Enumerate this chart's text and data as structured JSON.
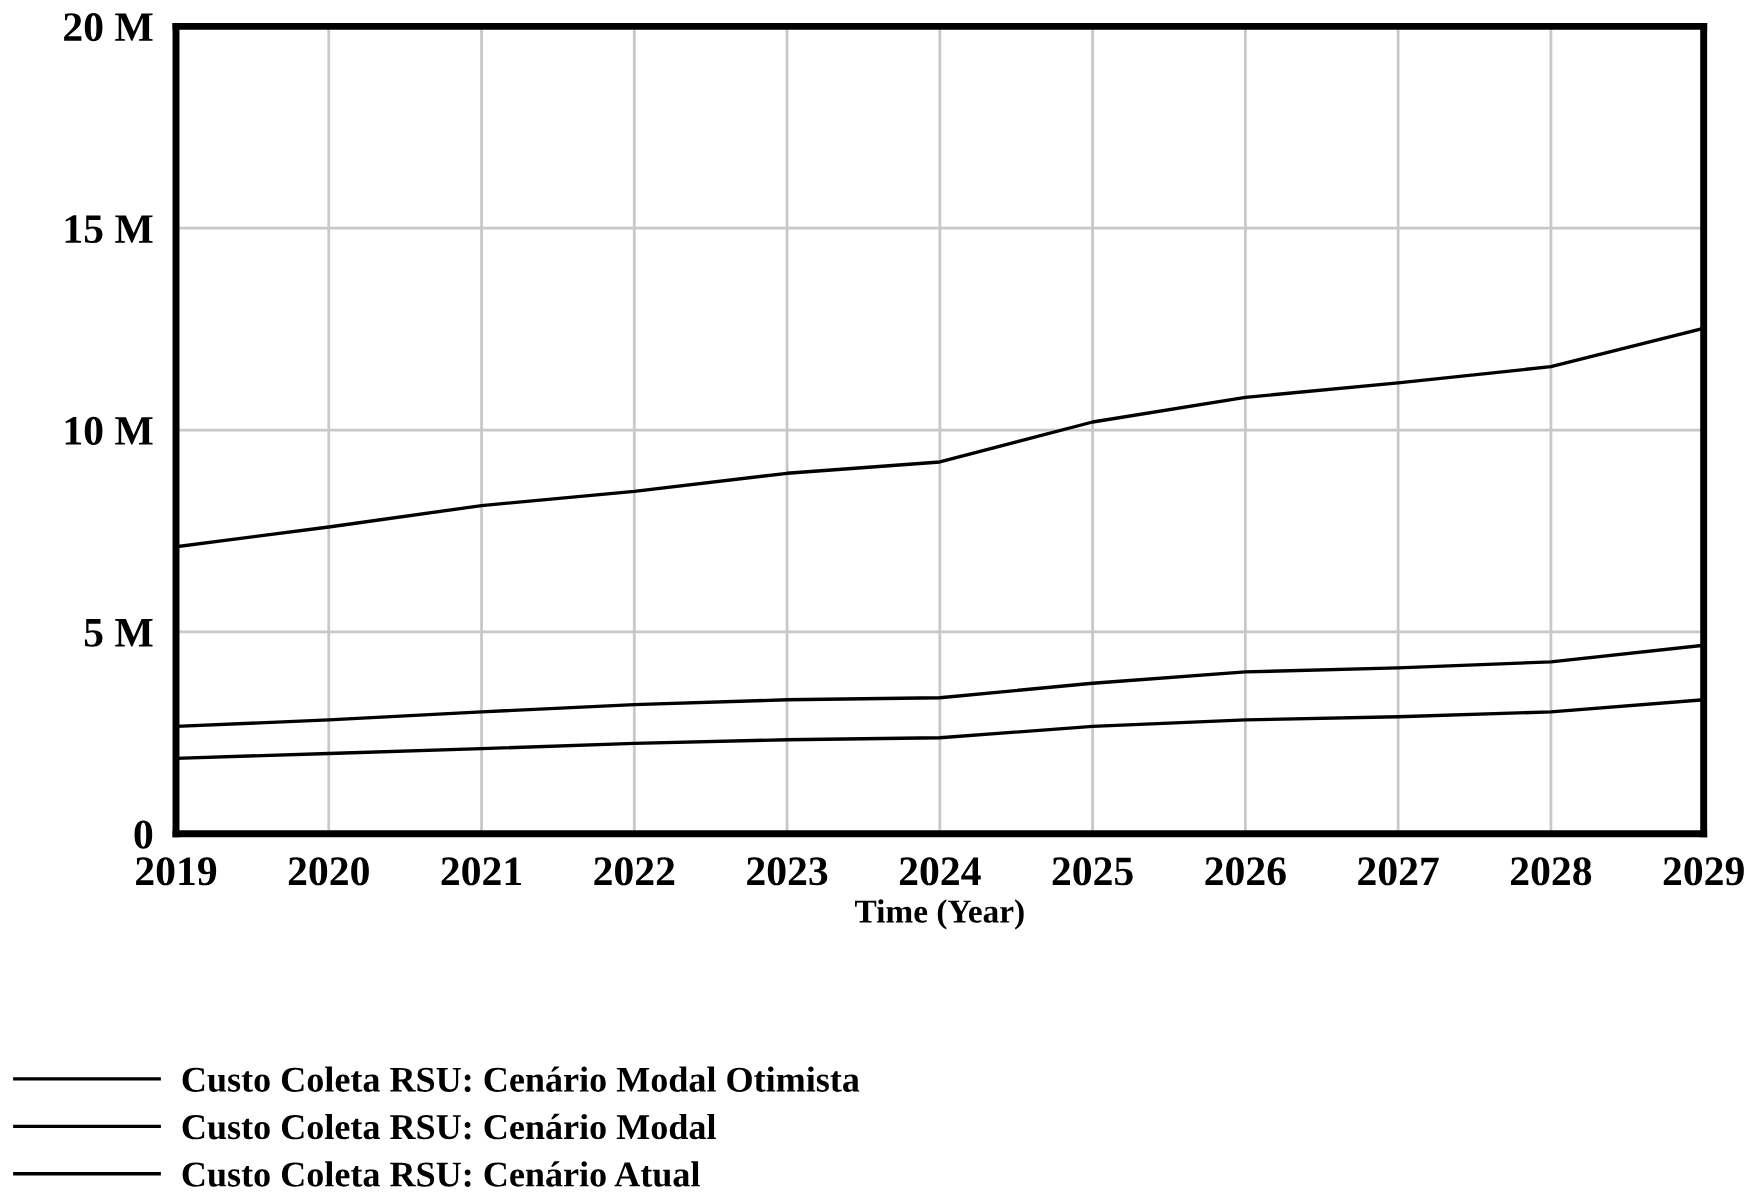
{
  "chart_data": {
    "type": "line",
    "xlabel": "Time (Year)",
    "x": [
      2019,
      2020,
      2021,
      2022,
      2023,
      2024,
      2025,
      2026,
      2027,
      2028,
      2029
    ],
    "series": [
      {
        "name": "Custo Coleta RSU: Cenário Modal Otimista",
        "color": "#000000",
        "values": [
          1.87,
          1.99,
          2.11,
          2.24,
          2.33,
          2.38,
          2.66,
          2.82,
          2.9,
          3.02,
          3.32
        ]
      },
      {
        "name": "Custo Coleta RSU: Cenário Modal",
        "color": "#000000",
        "values": [
          2.66,
          2.82,
          3.02,
          3.2,
          3.32,
          3.37,
          3.73,
          4.01,
          4.11,
          4.26,
          4.67
        ]
      },
      {
        "name": "Custo Coleta RSU: Cenário Atual",
        "color": "#000000",
        "values": [
          7.11,
          7.6,
          8.13,
          8.48,
          8.93,
          9.21,
          10.2,
          10.81,
          11.17,
          11.57,
          12.52
        ]
      }
    ],
    "xlim": [
      2019,
      2029
    ],
    "xticks": [
      2019,
      2020,
      2021,
      2022,
      2023,
      2024,
      2025,
      2026,
      2027,
      2028,
      2029
    ],
    "ylim": [
      0,
      20
    ],
    "yticks": [
      0,
      {
        "value": 5,
        "label": "5 M"
      },
      {
        "value": 10,
        "label": "10 M"
      },
      {
        "value": 15,
        "label": "15 M"
      },
      {
        "value": 20,
        "label": "20 M"
      }
    ],
    "grid": true,
    "legend": "bottom",
    "marker": "none",
    "line_style": "solid"
  }
}
